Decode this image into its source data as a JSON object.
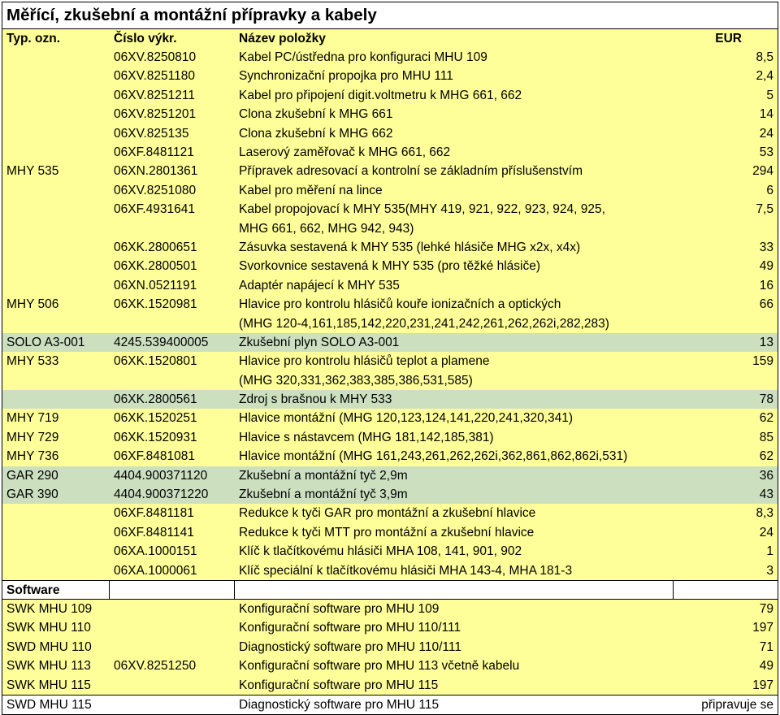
{
  "title": "Měřící, zkušební a montážní přípravky a kabely",
  "headers": {
    "typ": "Typ. ozn.",
    "cislo": "Číslo výkr.",
    "nazev": "Název položky",
    "eur": "EUR"
  },
  "colors": {
    "yellow": "#ffff99",
    "green": "#cce0c0",
    "white": "#ffffff"
  },
  "rows": [
    {
      "typ": "",
      "cislo": "06XV.8250810",
      "nazev": [
        "Kabel PC/ústředna pro konfiguraci MHU 109"
      ],
      "eur": "8,5",
      "bg": "yellow"
    },
    {
      "typ": "",
      "cislo": "06XV.8251180",
      "nazev": [
        "Synchronizační propojka pro MHU 111"
      ],
      "eur": "2,4",
      "bg": "yellow"
    },
    {
      "typ": "",
      "cislo": "06XV.8251211",
      "nazev": [
        "Kabel pro připojení digit.voltmetru k MHG 661, 662"
      ],
      "eur": "5",
      "bg": "yellow"
    },
    {
      "typ": "",
      "cislo": "06XV.8251201",
      "nazev": [
        "Clona zkušební k MHG 661"
      ],
      "eur": "14",
      "bg": "yellow"
    },
    {
      "typ": "",
      "cislo": "06XV.825135",
      "nazev": [
        "Clona zkušební k MHG 662"
      ],
      "eur": "24",
      "bg": "yellow"
    },
    {
      "typ": "",
      "cislo": "06XF.8481121",
      "nazev": [
        "Laserový zaměřovač k MHG 661, 662"
      ],
      "eur": "53",
      "bg": "yellow"
    },
    {
      "typ": "MHY 535",
      "cislo": "06XN.2801361",
      "nazev": [
        "Přípravek adresovací a kontrolní se základním  příslušenstvím"
      ],
      "eur": "294",
      "bg": "yellow"
    },
    {
      "typ": "",
      "cislo": "06XV.8251080",
      "nazev": [
        "Kabel pro měření na lince"
      ],
      "eur": "6",
      "bg": "yellow"
    },
    {
      "typ": "",
      "cislo": "06XF.4931641",
      "nazev": [
        "Kabel propojovací k MHY 535(MHY 419, 921, 922, 923, 924, 925,",
        "MHG 661, 662, MHG 942, 943)"
      ],
      "eur": "7,5",
      "bg": "yellow"
    },
    {
      "typ": "",
      "cislo": "06XK.2800651",
      "nazev": [
        "Zásuvka sestavená k MHY 535 (lehké hlásiče MHG x2x, x4x)"
      ],
      "eur": "33",
      "bg": "yellow"
    },
    {
      "typ": "",
      "cislo": "06XK.2800501",
      "nazev": [
        "Svorkovnice sestavená k MHY 535 (pro těžké hlásiče)"
      ],
      "eur": "49",
      "bg": "yellow"
    },
    {
      "typ": "",
      "cislo": "06XN.0521191",
      "nazev": [
        "Adaptér napájecí k MHY 535"
      ],
      "eur": "16",
      "bg": "yellow"
    },
    {
      "typ": "MHY 506",
      "cislo": "06XK.1520981",
      "nazev": [
        "Hlavice pro kontrolu hlásičů kouře ionizačních a optických",
        "(MHG 120-4,161,185,142,220,231,241,242,261,262,262i,282,283)"
      ],
      "eur": "66",
      "bg": "yellow"
    },
    {
      "typ": "SOLO A3-001",
      "cislo": "4245.539400005",
      "nazev": [
        "Zkušební plyn SOLO A3-001"
      ],
      "eur": "13",
      "bg": "green"
    },
    {
      "typ": "MHY 533",
      "cislo": "06XK.1520801",
      "nazev": [
        "Hlavice pro kontrolu hlásičů teplot a plamene",
        "(MHG 320,331,362,383,385,386,531,585)"
      ],
      "eur": "159",
      "bg": "yellow"
    },
    {
      "typ": "",
      "cislo": "06XK.2800561",
      "nazev": [
        "Zdroj s brašnou k MHY 533"
      ],
      "eur": "78",
      "bg": "green"
    },
    {
      "typ": "MHY 719",
      "cislo": "06XK.1520251",
      "nazev": [
        "Hlavice montážní  (MHG 120,123,124,141,220,241,320,341)"
      ],
      "eur": "62",
      "bg": "yellow"
    },
    {
      "typ": "MHY 729",
      "cislo": "06XK.1520931",
      "nazev": [
        "Hlavice s nástavcem (MHG 181,142,185,381)"
      ],
      "eur": "85",
      "bg": "yellow"
    },
    {
      "typ": "MHY 736",
      "cislo": "06XF.8481081",
      "nazev": [
        "Hlavice montážní  (MHG 161,243,261,262,262i,362,861,862,862i,531)"
      ],
      "eur": "62",
      "bg": "yellow"
    },
    {
      "typ": "GAR 290",
      "cislo": "4404.900371120",
      "nazev": [
        "Zkušební a montážní tyč 2,9m"
      ],
      "eur": "36",
      "bg": "green"
    },
    {
      "typ": "GAR 390",
      "cislo": "4404.900371220",
      "nazev": [
        "Zkušební a montážní tyč 3,9m"
      ],
      "eur": "43",
      "bg": "green"
    },
    {
      "typ": "",
      "cislo": "06XF.8481181",
      "nazev": [
        "Redukce k tyči GAR pro  montážní a zkušební hlavice"
      ],
      "eur": "8,3",
      "bg": "yellow"
    },
    {
      "typ": "",
      "cislo": "06XF.8481141",
      "nazev": [
        "Redukce k tyči MTT  pro montážní a zkušební hlavice"
      ],
      "eur": "24",
      "bg": "yellow"
    },
    {
      "typ": "",
      "cislo": "06XA.1000151",
      "nazev": [
        "Klíč k tlačítkovému hlásiči MHA 108, 141, 901, 902"
      ],
      "eur": "1",
      "bg": "yellow"
    },
    {
      "typ": "",
      "cislo": "06XA.1000061",
      "nazev": [
        "Klíč speciální k tlačítkovému hlásiči MHA 143-4, MHA 181-3"
      ],
      "eur": "3",
      "bg": "yellow"
    },
    {
      "typ": "Software",
      "cislo": "",
      "nazev": [
        ""
      ],
      "eur": "",
      "bg": "white",
      "section": true
    },
    {
      "typ": "SWK MHU 109",
      "cislo": "",
      "nazev": [
        "Konfigurační software pro MHU 109"
      ],
      "eur": "79",
      "bg": "yellow"
    },
    {
      "typ": "SWK MHU 110",
      "cislo": "",
      "nazev": [
        "Konfigurační software pro MHU 110/111"
      ],
      "eur": "197",
      "bg": "yellow"
    },
    {
      "typ": "SWD MHU 110",
      "cislo": "",
      "nazev": [
        "Diagnostický software pro MHU 110/111"
      ],
      "eur": "71",
      "bg": "yellow"
    },
    {
      "typ": "SWK MHU 113",
      "cislo": "06XV.8251250",
      "nazev": [
        "Konfigurační software pro MHU 113 včetně kabelu"
      ],
      "eur": "49",
      "bg": "yellow"
    },
    {
      "typ": "SWK MHU 115",
      "cislo": "",
      "nazev": [
        "Konfigurační software pro MHU 115"
      ],
      "eur": "197",
      "bg": "yellow"
    },
    {
      "typ": "SWD MHU 115",
      "cislo": "",
      "nazev": [
        "Diagnostický software pro MHU 115"
      ],
      "eur": "připravuje se",
      "bg": "white",
      "whiteTop": true
    }
  ]
}
